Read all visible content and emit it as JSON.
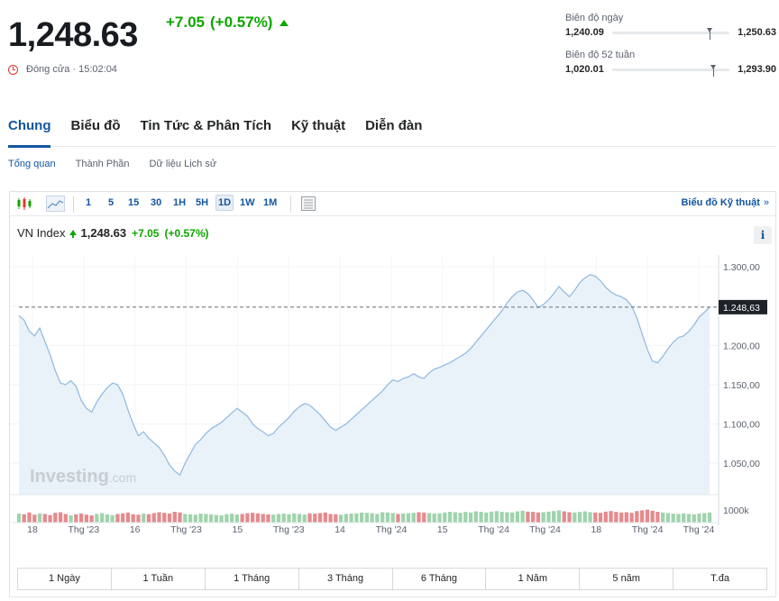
{
  "quote": {
    "last_price": "1,248.63",
    "change": "+7.05",
    "change_pct": "(+0.57%)",
    "status": "Đóng cửa · 15:02:04"
  },
  "ranges": {
    "day": {
      "title": "Biên độ ngày",
      "low": "1,240.09",
      "high": "1,250.63",
      "position": 0.81
    },
    "week52": {
      "title": "Biên độ 52 tuần",
      "low": "1,020.01",
      "high": "1,293.90",
      "position": 0.84
    }
  },
  "main_tabs": [
    "Chung",
    "Biểu đồ",
    "Tin Tức & Phân Tích",
    "Kỹ thuật",
    "Diễn đàn"
  ],
  "sub_tabs": [
    "Tổng quan",
    "Thành Phần",
    "Dữ liệu Lịch sử"
  ],
  "toolbar": {
    "intervals": [
      "1",
      "5",
      "15",
      "30",
      "1H",
      "5H",
      "1D",
      "1W",
      "1M"
    ],
    "selected_interval": "1D",
    "tech_chart_link": "Biểu đồ Kỹ thuật",
    "tech_chart_chevron": "»",
    "icons": [
      "candlestick-icon",
      "area-chart-icon",
      "table-icon"
    ]
  },
  "legend": {
    "name": "VN Index",
    "price": "1,248.63",
    "change": "+7.05",
    "change_pct": "(+0.57%)",
    "info": "i"
  },
  "watermark": {
    "brand": "Investing",
    "suffix": ".com"
  },
  "range_buttons": [
    "1 Ngày",
    "1 Tuần",
    "1 Tháng",
    "3 Tháng",
    "6 Tháng",
    "1 Năm",
    "5 năm",
    "T.đa"
  ],
  "colors": {
    "accent": "#1256a0",
    "positive": "#0ea600",
    "negative": "#e5352d",
    "line": "#8fb8df",
    "area": "#e9f1f9",
    "volume_up": "#9fd3ad",
    "volume_down": "#e58a8e"
  },
  "chart_data": {
    "type": "area",
    "title": "VN Index",
    "x_ticks": [
      "18",
      "Thg '23",
      "16",
      "Thg '23",
      "15",
      "Thg '23",
      "14",
      "Thg '24",
      "15",
      "Thg '24",
      "Thg '24",
      "18",
      "Thg '24",
      "Thg '24"
    ],
    "y_ticks": [
      "1.300,00",
      "1.250,00",
      "1.200,00",
      "1.150,00",
      "1.100,00",
      "1.050,00"
    ],
    "ylim": [
      1010,
      1315
    ],
    "last_value": 1248.63,
    "last_value_label": "1.248,63",
    "volume_label": "1000k",
    "grid": true,
    "values": [
      1238,
      1232,
      1218,
      1212,
      1222,
      1205,
      1188,
      1168,
      1152,
      1150,
      1155,
      1148,
      1130,
      1120,
      1115,
      1128,
      1138,
      1146,
      1152,
      1150,
      1138,
      1118,
      1100,
      1085,
      1090,
      1082,
      1076,
      1070,
      1060,
      1048,
      1040,
      1035,
      1050,
      1062,
      1074,
      1080,
      1088,
      1094,
      1098,
      1102,
      1108,
      1114,
      1120,
      1115,
      1110,
      1100,
      1094,
      1090,
      1085,
      1088,
      1096,
      1102,
      1108,
      1116,
      1122,
      1126,
      1124,
      1118,
      1112,
      1104,
      1096,
      1092,
      1096,
      1100,
      1106,
      1112,
      1118,
      1124,
      1130,
      1136,
      1142,
      1150,
      1156,
      1154,
      1158,
      1160,
      1164,
      1160,
      1158,
      1165,
      1170,
      1172,
      1175,
      1178,
      1182,
      1186,
      1190,
      1196,
      1204,
      1212,
      1220,
      1228,
      1236,
      1244,
      1254,
      1262,
      1268,
      1270,
      1266,
      1258,
      1248,
      1252,
      1258,
      1266,
      1275,
      1268,
      1262,
      1270,
      1280,
      1286,
      1290,
      1288,
      1282,
      1274,
      1268,
      1264,
      1262,
      1258,
      1250,
      1235,
      1215,
      1195,
      1180,
      1178,
      1186,
      1196,
      1204,
      1210,
      1212,
      1218,
      1226,
      1236,
      1242,
      1248.63
    ],
    "volumes": [
      0.62,
      0.58,
      0.7,
      0.55,
      0.64,
      0.6,
      0.52,
      0.68,
      0.72,
      0.6,
      0.5,
      0.58,
      0.63,
      0.55,
      0.5,
      0.6,
      0.66,
      0.57,
      0.52,
      0.6,
      0.64,
      0.7,
      0.58,
      0.55,
      0.62,
      0.59,
      0.66,
      0.72,
      0.68,
      0.63,
      0.75,
      0.7,
      0.6,
      0.58,
      0.55,
      0.62,
      0.6,
      0.57,
      0.53,
      0.5,
      0.58,
      0.62,
      0.56,
      0.6,
      0.65,
      0.68,
      0.64,
      0.6,
      0.57,
      0.55,
      0.6,
      0.62,
      0.58,
      0.63,
      0.6,
      0.56,
      0.64,
      0.62,
      0.66,
      0.7,
      0.6,
      0.58,
      0.55,
      0.6,
      0.62,
      0.64,
      0.7,
      0.68,
      0.65,
      0.6,
      0.72,
      0.7,
      0.66,
      0.6,
      0.63,
      0.65,
      0.68,
      0.72,
      0.7,
      0.66,
      0.62,
      0.64,
      0.7,
      0.75,
      0.72,
      0.68,
      0.74,
      0.7,
      0.78,
      0.74,
      0.7,
      0.76,
      0.8,
      0.74,
      0.72,
      0.7,
      0.78,
      0.82,
      0.76,
      0.74,
      0.7,
      0.72,
      0.76,
      0.8,
      0.85,
      0.78,
      0.72,
      0.7,
      0.74,
      0.78,
      0.72,
      0.7,
      0.68,
      0.76,
      0.8,
      0.74,
      0.7,
      0.72,
      0.68,
      0.8,
      0.85,
      0.9,
      0.82,
      0.75,
      0.7,
      0.66,
      0.62,
      0.6,
      0.64,
      0.6,
      0.58,
      0.62,
      0.66,
      0.7
    ]
  }
}
